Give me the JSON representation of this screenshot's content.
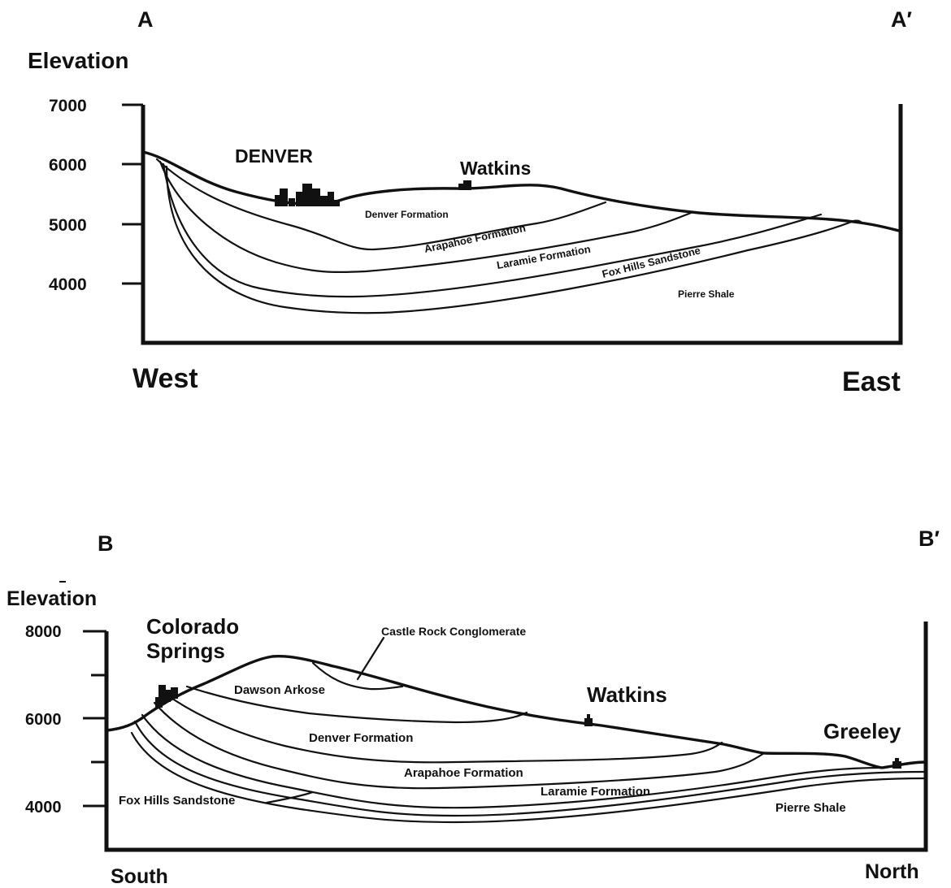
{
  "sections": {
    "a": {
      "label_left": "A",
      "label_right": "A′",
      "axis_title": "Elevation",
      "ticks": [
        "7000",
        "6000",
        "5000",
        "4000"
      ],
      "direction_left": "West",
      "direction_right": "East",
      "towns": [
        "DENVER",
        "Watkins"
      ],
      "formations": [
        "Denver Formation",
        "Arapahoe Formation",
        "Laramie Formation",
        "Fox Hills Sandstone",
        "Pierre Shale"
      ]
    },
    "b": {
      "label_left": "B",
      "label_right": "B′",
      "axis_title": "Elevation",
      "ticks": [
        "8000",
        "6000",
        "4000"
      ],
      "direction_left": "South",
      "direction_right": "North",
      "towns": [
        "Colorado",
        "Springs",
        "Watkins",
        "Greeley"
      ],
      "formations": [
        "Castle Rock Conglomerate",
        "Dawson Arkose",
        "Denver Formation",
        "Arapahoe Formation",
        "Laramie Formation",
        "Fox Hills Sandstone",
        "Pierre Shale"
      ]
    }
  }
}
